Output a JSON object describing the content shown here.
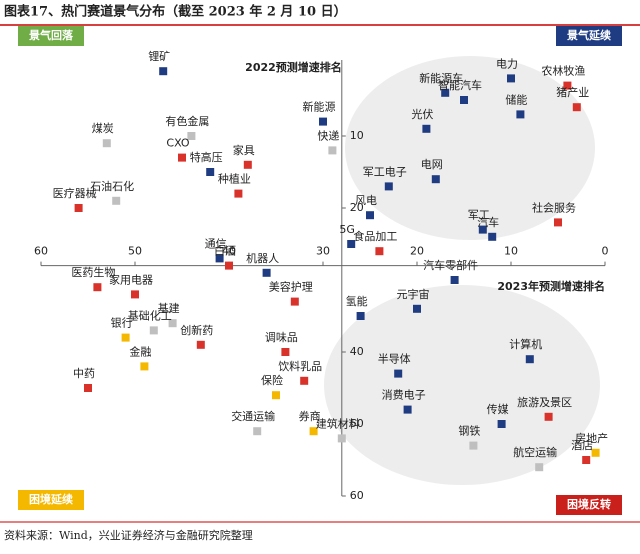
{
  "chart_data": {
    "type": "scatter",
    "title": "图表17、热门赛道景气分布（截至 2023 年 2 月 10 日）",
    "source": "资料来源：Wind，兴业证券经济与金融研究院整理",
    "y_axis_label": "2022预测增速排名",
    "x_axis_label": "2023年预测增速排名",
    "quadrants": [
      {
        "label": "景气回落",
        "color": "#70ad47"
      },
      {
        "label": "景气延续",
        "color": "#1f3b82"
      },
      {
        "label": "困境延续",
        "color": "#f5b800"
      },
      {
        "label": "困境反转",
        "color": "#c9201c"
      }
    ],
    "xlim": [
      60,
      0
    ],
    "xticks": [
      60,
      50,
      40,
      30,
      20,
      10,
      0
    ],
    "ylim": [
      0,
      60
    ],
    "yticks": [
      10,
      20,
      40,
      50,
      60
    ],
    "points": [
      {
        "label": "锂矿",
        "x": 47,
        "y": 1,
        "color": "#1f3b82"
      },
      {
        "label": "煤炭",
        "x": 53,
        "y": 11,
        "color": "#bfbfbf"
      },
      {
        "label": "有色金属",
        "x": 44,
        "y": 10,
        "color": "#bfbfbf"
      },
      {
        "label": "CXO",
        "x": 45,
        "y": 13,
        "color": "#d9322b"
      },
      {
        "label": "特高压",
        "x": 42,
        "y": 15,
        "color": "#1f3b82"
      },
      {
        "label": "家具",
        "x": 38,
        "y": 14,
        "color": "#d9322b"
      },
      {
        "label": "种植业",
        "x": 39,
        "y": 18,
        "color": "#d9322b"
      },
      {
        "label": "石油石化",
        "x": 52,
        "y": 19,
        "color": "#bfbfbf"
      },
      {
        "label": "医疗器械",
        "x": 56,
        "y": 20,
        "color": "#d9322b"
      },
      {
        "label": "新能源",
        "x": 30,
        "y": 8,
        "color": "#1f3b82"
      },
      {
        "label": "快递",
        "x": 29,
        "y": 12,
        "color": "#bfbfbf"
      },
      {
        "label": "新能源车",
        "x": 17,
        "y": 4,
        "color": "#1f3b82"
      },
      {
        "label": "智能汽车",
        "x": 15,
        "y": 5,
        "color": "#1f3b82"
      },
      {
        "label": "电力",
        "x": 10,
        "y": 2,
        "color": "#1f3b82"
      },
      {
        "label": "农林牧渔",
        "x": 4,
        "y": 3,
        "color": "#d9322b"
      },
      {
        "label": "储能",
        "x": 9,
        "y": 7,
        "color": "#1f3b82"
      },
      {
        "label": "猪产业",
        "x": 3,
        "y": 6,
        "color": "#d9322b"
      },
      {
        "label": "光伏",
        "x": 19,
        "y": 9,
        "color": "#1f3b82"
      },
      {
        "label": "军工电子",
        "x": 23,
        "y": 17,
        "color": "#1f3b82"
      },
      {
        "label": "电网",
        "x": 18,
        "y": 16,
        "color": "#1f3b82"
      },
      {
        "label": "风电",
        "x": 25,
        "y": 21,
        "color": "#1f3b82"
      },
      {
        "label": "军工",
        "x": 13,
        "y": 23,
        "color": "#1f3b82"
      },
      {
        "label": "汽车",
        "x": 12,
        "y": 24,
        "color": "#1f3b82"
      },
      {
        "label": "社会服务",
        "x": 5,
        "y": 22,
        "color": "#d9322b"
      },
      {
        "label": "5G",
        "x": 27,
        "y": 25,
        "color": "#1f3b82"
      },
      {
        "label": "食品加工",
        "x": 24,
        "y": 26,
        "color": "#d9322b"
      },
      {
        "label": "通信",
        "x": 41,
        "y": 27,
        "color": "#1f3b82"
      },
      {
        "label": "白酒",
        "x": 40,
        "y": 28,
        "color": "#d9322b"
      },
      {
        "label": "机器人",
        "x": 36,
        "y": 29,
        "color": "#1f3b82"
      },
      {
        "label": "汽车零部件",
        "x": 16,
        "y": 30,
        "color": "#1f3b82"
      },
      {
        "label": "医药生物",
        "x": 54,
        "y": 31,
        "color": "#d9322b"
      },
      {
        "label": "家用电器",
        "x": 50,
        "y": 32,
        "color": "#d9322b"
      },
      {
        "label": "基建",
        "x": 46,
        "y": 36,
        "color": "#bfbfbf"
      },
      {
        "label": "基础化工",
        "x": 48,
        "y": 37,
        "color": "#bfbfbf"
      },
      {
        "label": "美容护理",
        "x": 33,
        "y": 33,
        "color": "#d9322b"
      },
      {
        "label": "氢能",
        "x": 26,
        "y": 35,
        "color": "#1f3b82"
      },
      {
        "label": "元宇宙",
        "x": 20,
        "y": 34,
        "color": "#1f3b82"
      },
      {
        "label": "银行",
        "x": 51,
        "y": 38,
        "color": "#f5b800"
      },
      {
        "label": "创新药",
        "x": 43,
        "y": 39,
        "color": "#d9322b"
      },
      {
        "label": "金融",
        "x": 49,
        "y": 42,
        "color": "#f5b800"
      },
      {
        "label": "调味品",
        "x": 34,
        "y": 40,
        "color": "#d9322b"
      },
      {
        "label": "饮料乳品",
        "x": 32,
        "y": 44,
        "color": "#d9322b"
      },
      {
        "label": "中药",
        "x": 55,
        "y": 45,
        "color": "#d9322b"
      },
      {
        "label": "保险",
        "x": 35,
        "y": 46,
        "color": "#f5b800"
      },
      {
        "label": "交通运输",
        "x": 37,
        "y": 51,
        "color": "#bfbfbf"
      },
      {
        "label": "券商",
        "x": 31,
        "y": 51,
        "color": "#f5b800"
      },
      {
        "label": "建筑材料",
        "x": 28,
        "y": 52,
        "color": "#bfbfbf"
      },
      {
        "label": "计算机",
        "x": 8,
        "y": 41,
        "color": "#1f3b82"
      },
      {
        "label": "半导体",
        "x": 22,
        "y": 43,
        "color": "#1f3b82"
      },
      {
        "label": "消费电子",
        "x": 21,
        "y": 48,
        "color": "#1f3b82"
      },
      {
        "label": "旅游及景区",
        "x": 6,
        "y": 49,
        "color": "#d9322b"
      },
      {
        "label": "传媒",
        "x": 11,
        "y": 50,
        "color": "#1f3b82"
      },
      {
        "label": "钢铁",
        "x": 14,
        "y": 53,
        "color": "#bfbfbf"
      },
      {
        "label": "房地产",
        "x": 1,
        "y": 54,
        "color": "#f5b800"
      },
      {
        "label": "酒店",
        "x": 2,
        "y": 55,
        "color": "#d9322b"
      },
      {
        "label": "航空运输",
        "x": 7,
        "y": 56,
        "color": "#bfbfbf"
      }
    ]
  }
}
